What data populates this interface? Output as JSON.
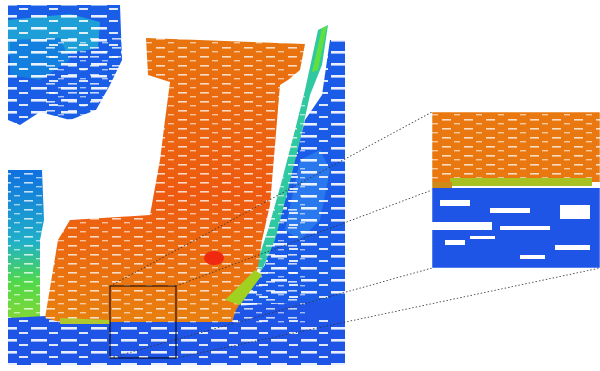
{
  "figure": {
    "kind": "depth-colored point cloud with zoom inset",
    "palette": {
      "far": "#1f4fe8",
      "far_light": "#2f6df0",
      "near": "#e8700f",
      "nearest": "#f04a10",
      "mid_cyan": "#1fa0d8",
      "mid_green": "#3fd03f",
      "yellow_green": "#b0d020",
      "background": "#ffffff",
      "frame": "#000000"
    }
  }
}
